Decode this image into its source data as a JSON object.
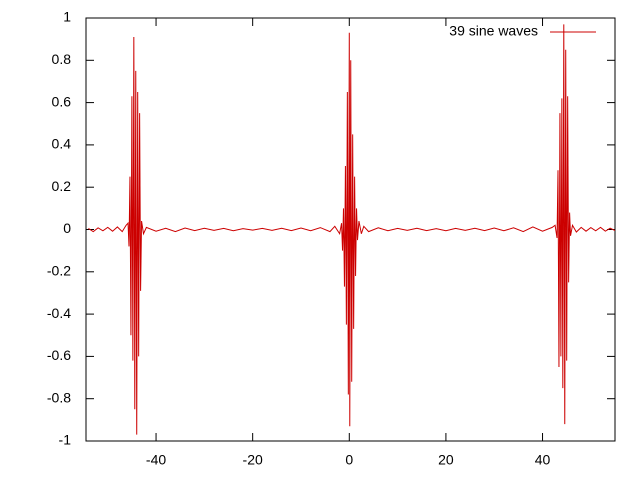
{
  "chart_data": {
    "type": "line",
    "x": [
      -54,
      -53,
      -52,
      -51,
      -50,
      -49,
      -48,
      -47,
      -46.2,
      -45.8,
      -45.6,
      -45.4,
      -45.2,
      -45.0,
      -44.8,
      -44.6,
      -44.4,
      -44.2,
      -44.0,
      -43.8,
      -43.6,
      -43.4,
      -43.2,
      -43.0,
      -42.6,
      -42,
      -40,
      -38,
      -36,
      -34,
      -32,
      -30,
      -28,
      -26,
      -24,
      -22,
      -20,
      -18,
      -16,
      -14,
      -12,
      -10,
      -8,
      -6,
      -4,
      -3,
      -2,
      -1.6,
      -1.4,
      -1.2,
      -1.0,
      -0.8,
      -0.6,
      -0.4,
      -0.2,
      0,
      0.1,
      0.3,
      0.5,
      0.7,
      0.9,
      1.1,
      1.3,
      1.5,
      1.7,
      2.0,
      2.5,
      3,
      4,
      6,
      8,
      10,
      12,
      14,
      16,
      18,
      20,
      22,
      24,
      26,
      28,
      30,
      32,
      34,
      36,
      38,
      40,
      42,
      42.6,
      43.0,
      43.2,
      43.4,
      43.6,
      43.8,
      44.0,
      44.2,
      44.4,
      44.6,
      44.8,
      45.0,
      45.2,
      45.4,
      45.6,
      45.8,
      46.2,
      47,
      48,
      49,
      50,
      51,
      52,
      53,
      54,
      55
    ],
    "series": [
      {
        "name": "39 sine waves",
        "color": "#cc0000",
        "values": [
          0.005,
          -0.01,
          0.008,
          -0.006,
          0.01,
          -0.008,
          0.012,
          -0.01,
          0.02,
          0.03,
          -0.08,
          0.25,
          -0.5,
          0.63,
          -0.62,
          0.91,
          -0.85,
          0.75,
          -0.97,
          0.65,
          -0.6,
          0.55,
          -0.29,
          0.04,
          -0.02,
          0.01,
          -0.008,
          0.006,
          -0.01,
          0.007,
          -0.005,
          0.006,
          -0.004,
          0.005,
          -0.006,
          0.004,
          -0.003,
          0.005,
          -0.004,
          0.006,
          -0.005,
          0.007,
          -0.006,
          0.009,
          -0.01,
          0.015,
          -0.02,
          0.03,
          -0.1,
          0.1,
          -0.27,
          0.3,
          -0.45,
          0.65,
          -0.78,
          0.93,
          -0.93,
          0.8,
          -0.72,
          0.45,
          -0.47,
          0.25,
          -0.22,
          0.1,
          -0.05,
          0.04,
          -0.02,
          0.015,
          -0.01,
          0.008,
          -0.006,
          0.005,
          -0.004,
          0.006,
          -0.005,
          0.004,
          -0.006,
          0.005,
          -0.004,
          0.006,
          -0.005,
          0.007,
          -0.006,
          0.008,
          -0.01,
          0.012,
          -0.008,
          0.01,
          0.02,
          -0.04,
          0.28,
          -0.65,
          0.55,
          -0.6,
          0.62,
          -0.75,
          0.97,
          -0.92,
          0.85,
          -0.62,
          0.63,
          -0.25,
          0.08,
          -0.03,
          0.02,
          -0.012,
          0.01,
          -0.008,
          0.009,
          -0.006,
          0.01,
          -0.008,
          0.006,
          -0.005
        ]
      }
    ],
    "xlim": [
      -54.5,
      55
    ],
    "ylim": [
      -1,
      1
    ],
    "xticks": [
      -40,
      -20,
      0,
      20,
      40
    ],
    "yticks": [
      -1,
      -0.8,
      -0.6,
      -0.4,
      -0.2,
      0,
      0.2,
      0.4,
      0.6,
      0.8,
      1
    ],
    "legend": "top-right"
  }
}
